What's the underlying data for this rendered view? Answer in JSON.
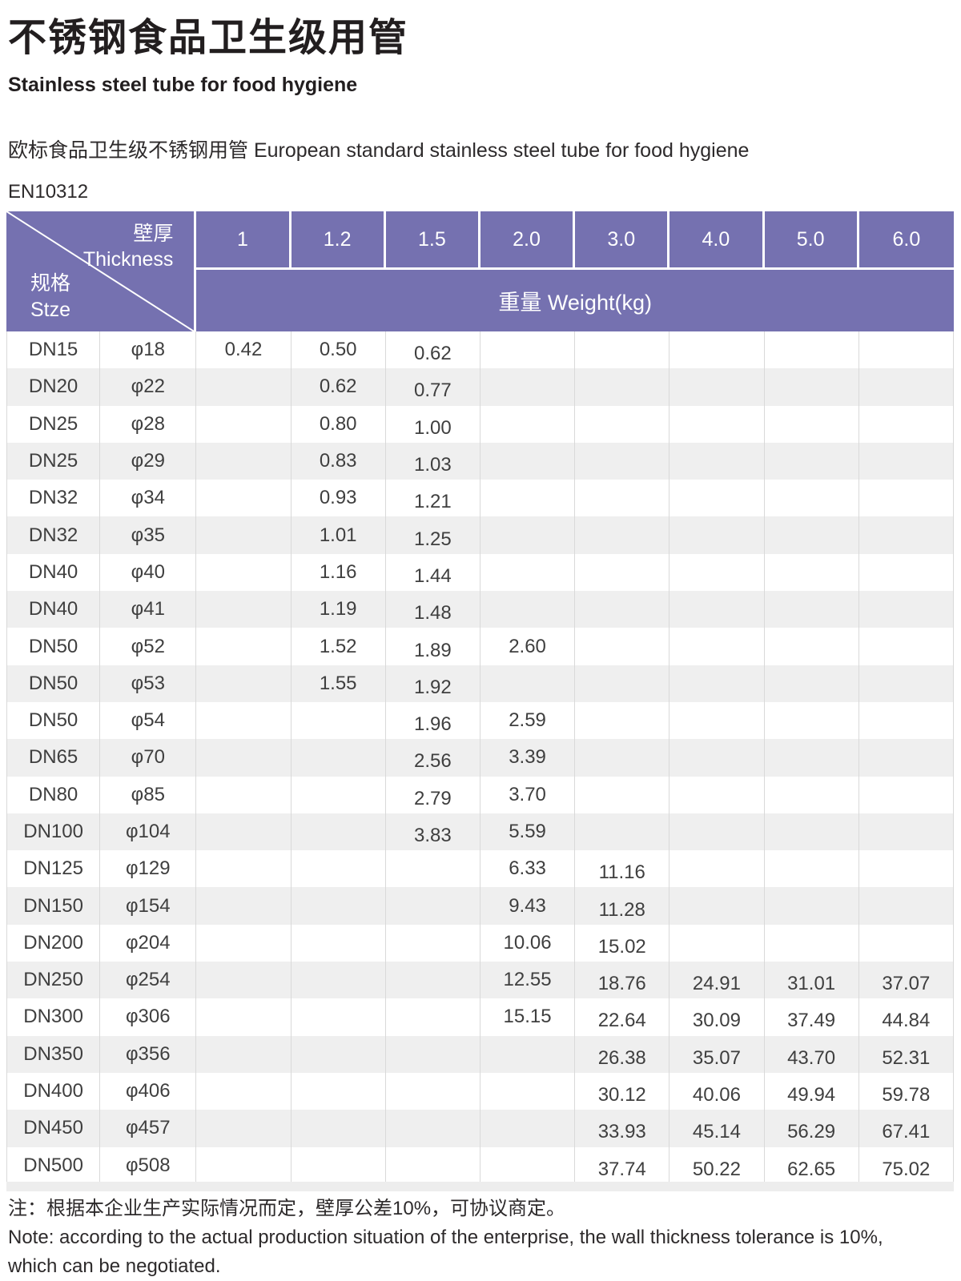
{
  "page": {
    "title_zh": "不锈钢食品卫生级用管",
    "title_en": "Stainless steel tube for food hygiene",
    "intro": "欧标食品卫生级不锈钢用管  European standard stainless steel tube for food hygiene",
    "standard": "EN10312"
  },
  "colors": {
    "header_purple": "#7571b0",
    "row_alt_gray": "#efefef",
    "gridline_gray": "#d9d9d9",
    "text_dark": "#3f3f3f"
  },
  "table": {
    "corner": {
      "top_zh": "壁厚",
      "top_en": "Thickness",
      "bottom_zh": "规格",
      "bottom_en": "Stze"
    },
    "thickness_cols": [
      "1",
      "1.2",
      "1.5",
      "2.0",
      "3.0",
      "4.0",
      "5.0",
      "6.0"
    ],
    "weight_header": "重量 Weight(kg)",
    "rows": [
      {
        "dn": "DN15",
        "dia": "φ18",
        "w": [
          "0.42",
          "0.50",
          "0.62",
          "",
          "",
          "",
          "",
          ""
        ]
      },
      {
        "dn": "DN20",
        "dia": "φ22",
        "w": [
          "",
          "0.62",
          "0.77",
          "",
          "",
          "",
          "",
          ""
        ]
      },
      {
        "dn": "DN25",
        "dia": "φ28",
        "w": [
          "",
          "0.80",
          "1.00",
          "",
          "",
          "",
          "",
          ""
        ]
      },
      {
        "dn": "DN25",
        "dia": "φ29",
        "w": [
          "",
          "0.83",
          "1.03",
          "",
          "",
          "",
          "",
          ""
        ]
      },
      {
        "dn": "DN32",
        "dia": "φ34",
        "w": [
          "",
          "0.93",
          "1.21",
          "",
          "",
          "",
          "",
          ""
        ]
      },
      {
        "dn": "DN32",
        "dia": "φ35",
        "w": [
          "",
          "1.01",
          "1.25",
          "",
          "",
          "",
          "",
          ""
        ]
      },
      {
        "dn": "DN40",
        "dia": "φ40",
        "w": [
          "",
          "1.16",
          "1.44",
          "",
          "",
          "",
          "",
          ""
        ]
      },
      {
        "dn": "DN40",
        "dia": "φ41",
        "w": [
          "",
          "1.19",
          "1.48",
          "",
          "",
          "",
          "",
          ""
        ]
      },
      {
        "dn": "DN50",
        "dia": "φ52",
        "w": [
          "",
          "1.52",
          "1.89",
          "2.60",
          "",
          "",
          "",
          ""
        ]
      },
      {
        "dn": "DN50",
        "dia": "φ53",
        "w": [
          "",
          "1.55",
          "1.92",
          "",
          "",
          "",
          "",
          ""
        ]
      },
      {
        "dn": "DN50",
        "dia": "φ54",
        "w": [
          "",
          "",
          "1.96",
          "2.59",
          "",
          "",
          "",
          ""
        ]
      },
      {
        "dn": "DN65",
        "dia": "φ70",
        "w": [
          "",
          "",
          "2.56",
          "3.39",
          "",
          "",
          "",
          ""
        ]
      },
      {
        "dn": "DN80",
        "dia": "φ85",
        "w": [
          "",
          "",
          "2.79",
          "3.70",
          "",
          "",
          "",
          ""
        ]
      },
      {
        "dn": "DN100",
        "dia": "φ104",
        "w": [
          "",
          "",
          "3.83",
          "5.59",
          "",
          "",
          "",
          ""
        ]
      },
      {
        "dn": "DN125",
        "dia": "φ129",
        "w": [
          "",
          "",
          "",
          "6.33",
          "11.16",
          "",
          "",
          ""
        ]
      },
      {
        "dn": "DN150",
        "dia": "φ154",
        "w": [
          "",
          "",
          "",
          "9.43",
          "11.28",
          "",
          "",
          ""
        ]
      },
      {
        "dn": "DN200",
        "dia": "φ204",
        "w": [
          "",
          "",
          "",
          "10.06",
          "15.02",
          "",
          "",
          ""
        ]
      },
      {
        "dn": "DN250",
        "dia": "φ254",
        "w": [
          "",
          "",
          "",
          "12.55",
          "18.76",
          "24.91",
          "31.01",
          "37.07"
        ]
      },
      {
        "dn": "DN300",
        "dia": "φ306",
        "w": [
          "",
          "",
          "",
          "15.15",
          "22.64",
          "30.09",
          "37.49",
          "44.84"
        ]
      },
      {
        "dn": "DN350",
        "dia": "φ356",
        "w": [
          "",
          "",
          "",
          "",
          "26.38",
          "35.07",
          "43.70",
          "52.31"
        ]
      },
      {
        "dn": "DN400",
        "dia": "φ406",
        "w": [
          "",
          "",
          "",
          "",
          "30.12",
          "40.06",
          "49.94",
          "59.78"
        ]
      },
      {
        "dn": "DN450",
        "dia": "φ457",
        "w": [
          "",
          "",
          "",
          "",
          "33.93",
          "45.14",
          "56.29",
          "67.41"
        ]
      },
      {
        "dn": "DN500",
        "dia": "φ508",
        "w": [
          "",
          "",
          "",
          "",
          "37.74",
          "50.22",
          "62.65",
          "75.02"
        ]
      }
    ]
  },
  "note": {
    "zh": "注：根据本企业生产实际情况而定，壁厚公差10%，可协议商定。",
    "en_line1": "Note: according to the actual production situation of the enterprise, the wall thickness tolerance is 10%,",
    "en_line2": "which can be negotiated."
  }
}
